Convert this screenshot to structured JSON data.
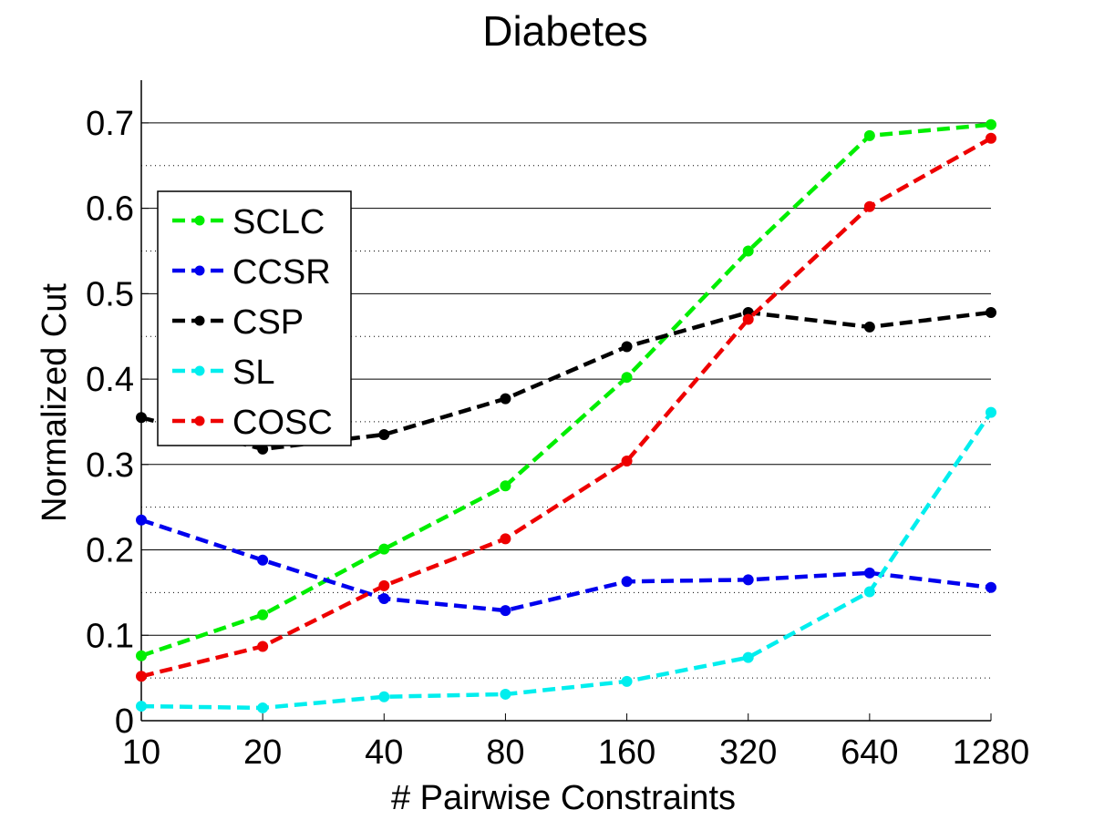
{
  "chart_data": {
    "type": "line",
    "title": "Diabetes",
    "xlabel": "# Pairwise Constraints",
    "ylabel": "Normalized Cut",
    "categories": [
      "10",
      "20",
      "40",
      "80",
      "160",
      "320",
      "640",
      "1280"
    ],
    "ylim": [
      0,
      0.75
    ],
    "yticks": [
      0,
      0.1,
      0.2,
      0.3,
      0.4,
      0.5,
      0.6,
      0.7
    ],
    "ytick_labels": [
      "0",
      "0.1",
      "0.2",
      "0.3",
      "0.4",
      "0.5",
      "0.6",
      "0.7"
    ],
    "grid": "major solid, minor dotted",
    "legend_position": "upper-left",
    "series": [
      {
        "name": "SCLC",
        "color": "#00ee00",
        "values": [
          0.076,
          0.124,
          0.201,
          0.275,
          0.402,
          0.55,
          0.685,
          0.698
        ]
      },
      {
        "name": "CCSR",
        "color": "#0000ee",
        "values": [
          0.235,
          0.188,
          0.143,
          0.129,
          0.163,
          0.165,
          0.173,
          0.156
        ]
      },
      {
        "name": "CSP",
        "color": "#000000",
        "values": [
          0.355,
          0.318,
          0.335,
          0.377,
          0.438,
          0.478,
          0.461,
          0.478
        ]
      },
      {
        "name": "SL",
        "color": "#00eeee",
        "values": [
          0.017,
          0.015,
          0.028,
          0.031,
          0.046,
          0.074,
          0.151,
          0.361
        ]
      },
      {
        "name": "COSC",
        "color": "#ee0000",
        "values": [
          0.052,
          0.087,
          0.158,
          0.213,
          0.304,
          0.47,
          0.602,
          0.682
        ]
      }
    ]
  }
}
